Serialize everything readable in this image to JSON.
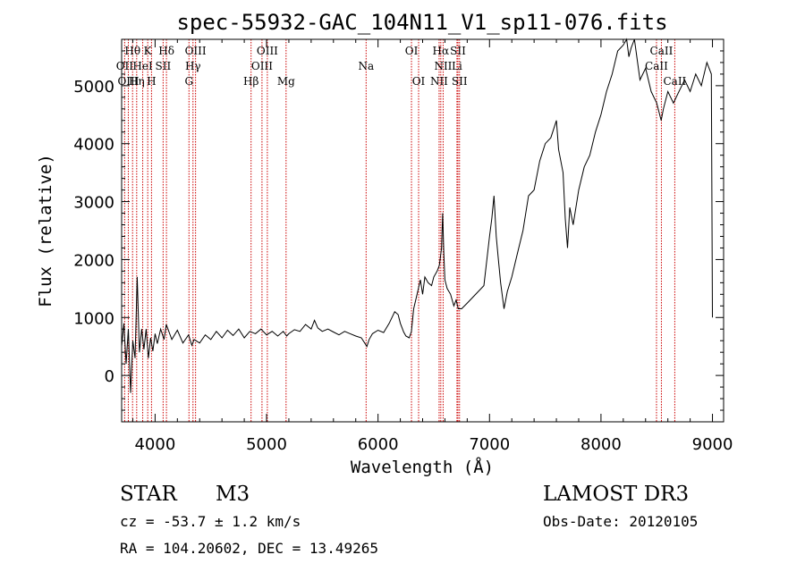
{
  "chart_data": {
    "type": "line",
    "title": "spec-55932-GAC_104N11_V1_sp11-076.fits",
    "xlabel": "Wavelength (Å)",
    "ylabel": "Flux (relative)",
    "xlim": [
      3700,
      9100
    ],
    "ylim": [
      -800,
      5800
    ],
    "x_ticks": [
      4000,
      5000,
      6000,
      7000,
      8000,
      9000
    ],
    "y_ticks": [
      0,
      1000,
      2000,
      3000,
      4000,
      5000
    ],
    "line_color": "#000000",
    "marker_color": "#cc0000",
    "series": [
      {
        "name": "spectrum",
        "points": [
          [
            3700,
            500
          ],
          [
            3720,
            900
          ],
          [
            3740,
            200
          ],
          [
            3760,
            800
          ],
          [
            3780,
            -300
          ],
          [
            3800,
            600
          ],
          [
            3820,
            300
          ],
          [
            3840,
            1700
          ],
          [
            3860,
            400
          ],
          [
            3880,
            800
          ],
          [
            3900,
            450
          ],
          [
            3920,
            800
          ],
          [
            3940,
            300
          ],
          [
            3960,
            650
          ],
          [
            3980,
            420
          ],
          [
            4000,
            720
          ],
          [
            4020,
            550
          ],
          [
            4050,
            800
          ],
          [
            4080,
            620
          ],
          [
            4100,
            880
          ],
          [
            4150,
            620
          ],
          [
            4200,
            780
          ],
          [
            4250,
            560
          ],
          [
            4300,
            700
          ],
          [
            4330,
            520
          ],
          [
            4350,
            620
          ],
          [
            4400,
            560
          ],
          [
            4450,
            700
          ],
          [
            4500,
            620
          ],
          [
            4550,
            760
          ],
          [
            4600,
            650
          ],
          [
            4650,
            780
          ],
          [
            4700,
            690
          ],
          [
            4750,
            800
          ],
          [
            4800,
            650
          ],
          [
            4850,
            760
          ],
          [
            4900,
            720
          ],
          [
            4950,
            800
          ],
          [
            5000,
            700
          ],
          [
            5050,
            760
          ],
          [
            5100,
            680
          ],
          [
            5150,
            760
          ],
          [
            5180,
            680
          ],
          [
            5200,
            720
          ],
          [
            5250,
            790
          ],
          [
            5300,
            760
          ],
          [
            5350,
            880
          ],
          [
            5400,
            800
          ],
          [
            5430,
            950
          ],
          [
            5460,
            820
          ],
          [
            5500,
            760
          ],
          [
            5550,
            800
          ],
          [
            5600,
            750
          ],
          [
            5650,
            700
          ],
          [
            5700,
            760
          ],
          [
            5750,
            720
          ],
          [
            5800,
            680
          ],
          [
            5850,
            650
          ],
          [
            5900,
            500
          ],
          [
            5920,
            620
          ],
          [
            5950,
            720
          ],
          [
            6000,
            780
          ],
          [
            6050,
            740
          ],
          [
            6100,
            900
          ],
          [
            6150,
            1100
          ],
          [
            6180,
            1050
          ],
          [
            6200,
            900
          ],
          [
            6230,
            750
          ],
          [
            6250,
            680
          ],
          [
            6280,
            650
          ],
          [
            6300,
            760
          ],
          [
            6320,
            1150
          ],
          [
            6350,
            1400
          ],
          [
            6380,
            1650
          ],
          [
            6400,
            1400
          ],
          [
            6420,
            1700
          ],
          [
            6450,
            1600
          ],
          [
            6480,
            1550
          ],
          [
            6500,
            1700
          ],
          [
            6530,
            1800
          ],
          [
            6550,
            1900
          ],
          [
            6570,
            2200
          ],
          [
            6580,
            2800
          ],
          [
            6590,
            2100
          ],
          [
            6600,
            1650
          ],
          [
            6620,
            1500
          ],
          [
            6650,
            1400
          ],
          [
            6680,
            1200
          ],
          [
            6700,
            1300
          ],
          [
            6720,
            1150
          ],
          [
            6750,
            1150
          ],
          [
            6800,
            1250
          ],
          [
            6850,
            1350
          ],
          [
            6900,
            1450
          ],
          [
            6950,
            1550
          ],
          [
            7000,
            2400
          ],
          [
            7020,
            2700
          ],
          [
            7040,
            3100
          ],
          [
            7060,
            2400
          ],
          [
            7080,
            2000
          ],
          [
            7100,
            1600
          ],
          [
            7130,
            1150
          ],
          [
            7160,
            1450
          ],
          [
            7200,
            1700
          ],
          [
            7250,
            2100
          ],
          [
            7300,
            2500
          ],
          [
            7350,
            3100
          ],
          [
            7400,
            3200
          ],
          [
            7450,
            3700
          ],
          [
            7500,
            4000
          ],
          [
            7550,
            4100
          ],
          [
            7600,
            4400
          ],
          [
            7620,
            3900
          ],
          [
            7640,
            3700
          ],
          [
            7660,
            3500
          ],
          [
            7680,
            2700
          ],
          [
            7700,
            2200
          ],
          [
            7720,
            2900
          ],
          [
            7750,
            2600
          ],
          [
            7800,
            3200
          ],
          [
            7850,
            3600
          ],
          [
            7900,
            3800
          ],
          [
            7950,
            4200
          ],
          [
            8000,
            4500
          ],
          [
            8050,
            4900
          ],
          [
            8100,
            5200
          ],
          [
            8150,
            5600
          ],
          [
            8200,
            5700
          ],
          [
            8230,
            5800
          ],
          [
            8250,
            5500
          ],
          [
            8270,
            5650
          ],
          [
            8300,
            5800
          ],
          [
            8350,
            5100
          ],
          [
            8400,
            5300
          ],
          [
            8450,
            4900
          ],
          [
            8500,
            4700
          ],
          [
            8540,
            4400
          ],
          [
            8560,
            4600
          ],
          [
            8600,
            4900
          ],
          [
            8650,
            4700
          ],
          [
            8700,
            4900
          ],
          [
            8750,
            5100
          ],
          [
            8800,
            4900
          ],
          [
            8850,
            5200
          ],
          [
            8900,
            5000
          ],
          [
            8950,
            5400
          ],
          [
            8990,
            5200
          ],
          [
            9000,
            1000
          ]
        ]
      }
    ],
    "lines": [
      {
        "label": "Hθ",
        "wave": 3798,
        "row": 0,
        "shift": 0
      },
      {
        "label": "OII",
        "wave": 3727,
        "row": 1,
        "shift": 0
      },
      {
        "label": "OIII",
        "wave": 3760,
        "row": 2,
        "shift": 0
      },
      {
        "label": "K",
        "wave": 3934,
        "row": 0,
        "shift": 0
      },
      {
        "label": "HeI",
        "wave": 3889,
        "row": 1,
        "shift": 0
      },
      {
        "label": "Hη",
        "wave": 3835,
        "row": 2,
        "shift": 0
      },
      {
        "label": "SII",
        "wave": 4072,
        "row": 1,
        "shift": 0
      },
      {
        "label": "H",
        "wave": 3968,
        "row": 2,
        "shift": 0
      },
      {
        "label": "Hδ",
        "wave": 4102,
        "row": 0,
        "shift": 0
      },
      {
        "label": "OIII",
        "wave": 4363,
        "row": 0,
        "shift": 0
      },
      {
        "label": "Hγ",
        "wave": 4340,
        "row": 1,
        "shift": 0
      },
      {
        "label": "G",
        "wave": 4304,
        "row": 2,
        "shift": 0
      },
      {
        "label": "OIII",
        "wave": 5007,
        "row": 0,
        "shift": 0
      },
      {
        "label": "OIII",
        "wave": 4959,
        "row": 1,
        "shift": 0
      },
      {
        "label": "Hβ",
        "wave": 4861,
        "row": 2,
        "shift": 0
      },
      {
        "label": "Mg",
        "wave": 5175,
        "row": 2,
        "shift": 0
      },
      {
        "label": "Na",
        "wave": 5893,
        "row": 1,
        "shift": 0
      },
      {
        "label": "OI",
        "wave": 6300,
        "row": 0,
        "shift": 0
      },
      {
        "label": "OI",
        "wave": 6364,
        "row": 2,
        "shift": 0
      },
      {
        "label": "Hα",
        "wave": 6563,
        "row": 0,
        "shift": 0
      },
      {
        "label": "SII",
        "wave": 6717,
        "row": 0,
        "shift": 0
      },
      {
        "label": "NII",
        "wave": 6584,
        "row": 1,
        "shift": 0
      },
      {
        "label": "Li",
        "wave": 6708,
        "row": 1,
        "shift": 0
      },
      {
        "label": "NII",
        "wave": 6548,
        "row": 2,
        "shift": 0
      },
      {
        "label": "SII",
        "wave": 6731,
        "row": 2,
        "shift": 0
      },
      {
        "label": "CaII",
        "wave": 8542,
        "row": 0,
        "shift": 0
      },
      {
        "label": "CaII",
        "wave": 8498,
        "row": 1,
        "shift": 0
      },
      {
        "label": "CaII",
        "wave": 8662,
        "row": 2,
        "shift": 0
      }
    ]
  },
  "info": {
    "class": "STAR",
    "subclass": "M3",
    "survey": "LAMOST DR3",
    "cz": "cz = -53.7 ± 1.2 km/s",
    "obs_date": "Obs-Date: 20120105",
    "coords": "RA = 104.20602, DEC =  13.49265"
  }
}
